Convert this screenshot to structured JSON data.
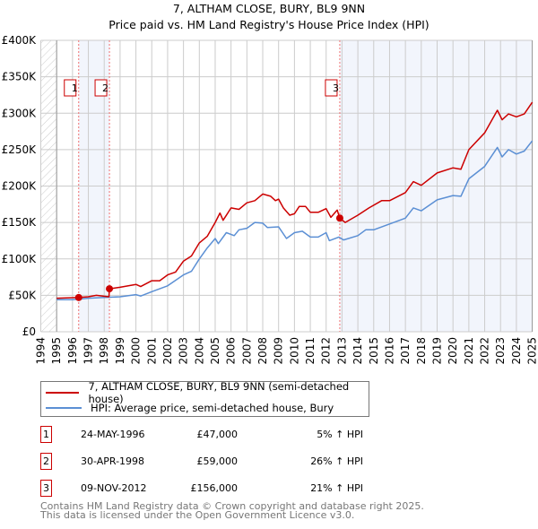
{
  "chart_data": {
    "type": "line",
    "title": "7, ALTHAM CLOSE, BURY, BL9 9NN",
    "subtitle": "Price paid vs. HM Land Registry's House Price Index (HPI)",
    "xlim": [
      1994,
      2025
    ],
    "ylim": [
      0,
      400000
    ],
    "x_ticks": [
      "1994",
      "1995",
      "1996",
      "1997",
      "1998",
      "1999",
      "2000",
      "2001",
      "2002",
      "2003",
      "2004",
      "2005",
      "2006",
      "2007",
      "2008",
      "2009",
      "2010",
      "2011",
      "2012",
      "2013",
      "2014",
      "2015",
      "2016",
      "2017",
      "2018",
      "2019",
      "2020",
      "2021",
      "2022",
      "2023",
      "2024",
      "2025"
    ],
    "y_ticks": [
      {
        "v": 0,
        "label": "£0"
      },
      {
        "v": 50000,
        "label": "£50K"
      },
      {
        "v": 100000,
        "label": "£100K"
      },
      {
        "v": 150000,
        "label": "£150K"
      },
      {
        "v": 200000,
        "label": "£200K"
      },
      {
        "v": 250000,
        "label": "£250K"
      },
      {
        "v": 300000,
        "label": "£300K"
      },
      {
        "v": 350000,
        "label": "£350K"
      },
      {
        "v": 400000,
        "label": "£400K"
      }
    ],
    "grid": true,
    "series": [
      {
        "name": "7, ALTHAM CLOSE, BURY, BL9 9NN (semi-detached house)",
        "color": "#cc0000",
        "x": [
          1995,
          1996.39,
          1997,
          1997.5,
          1998.3,
          1998.33,
          1999,
          2000,
          2000.3,
          2001,
          2001.5,
          2002,
          2002.5,
          2003,
          2003.5,
          2004,
          2004.5,
          2005,
          2005.3,
          2005.5,
          2006,
          2006.5,
          2007,
          2007.5,
          2008,
          2008.5,
          2008.8,
          2009,
          2009.3,
          2009.7,
          2010,
          2010.3,
          2010.7,
          2011,
          2011.5,
          2012,
          2012.3,
          2012.7,
          2012.86,
          2013.2,
          2014,
          2014.7,
          2015.5,
          2016,
          2017,
          2017.5,
          2018,
          2019,
          2020,
          2020.5,
          2021,
          2022,
          2022.8,
          2023.1,
          2023.5,
          2024,
          2024.5,
          2025
        ],
        "y": [
          46000,
          47000,
          48000,
          50000,
          48000,
          59000,
          61000,
          65000,
          62000,
          70000,
          70000,
          78000,
          82000,
          97000,
          104000,
          122000,
          131000,
          150000,
          163000,
          153000,
          170000,
          168000,
          177000,
          180000,
          189000,
          186000,
          180000,
          182000,
          170000,
          160000,
          162000,
          172000,
          172000,
          164000,
          164000,
          169000,
          157000,
          167000,
          156000,
          150000,
          160000,
          170000,
          180000,
          180000,
          191000,
          206000,
          201000,
          218000,
          225000,
          223000,
          250000,
          273000,
          304000,
          291000,
          299000,
          295000,
          299000,
          315000
        ]
      },
      {
        "name": "HPI: Average price, semi-detached house, Bury",
        "color": "#5b8fd4",
        "x": [
          1995,
          1996,
          1997,
          1998,
          1999,
          2000,
          2000.3,
          2001,
          2002,
          2003,
          2003.5,
          2004,
          2004.5,
          2005,
          2005.2,
          2005.7,
          2006.2,
          2006.5,
          2007,
          2007.5,
          2008,
          2008.3,
          2009,
          2009.5,
          2010,
          2010.5,
          2011,
          2011.5,
          2012,
          2012.2,
          2012.8,
          2013.1,
          2014,
          2014.5,
          2015,
          2016,
          2017,
          2017.5,
          2018,
          2019,
          2020,
          2020.5,
          2021,
          2022,
          2022.8,
          2023.1,
          2023.5,
          2024,
          2024.5,
          2025
        ],
        "y": [
          44000,
          44000,
          46000,
          47000,
          48000,
          51000,
          49000,
          55000,
          63000,
          78000,
          83000,
          100000,
          115000,
          128000,
          121000,
          136000,
          132000,
          140000,
          142000,
          150000,
          149000,
          143000,
          144000,
          128000,
          136000,
          138000,
          130000,
          130000,
          136000,
          125000,
          130000,
          126000,
          132000,
          140000,
          140000,
          148000,
          156000,
          170000,
          166000,
          181000,
          187000,
          186000,
          210000,
          227000,
          253000,
          240000,
          250000,
          244000,
          248000,
          262000
        ]
      }
    ],
    "sales": [
      {
        "n": "1",
        "x": 1996.39,
        "y": 47000
      },
      {
        "n": "2",
        "x": 1998.33,
        "y": 59000
      },
      {
        "n": "3",
        "x": 2012.86,
        "y": 156000
      }
    ],
    "legend_position": "below"
  },
  "legend": {
    "property": "7, ALTHAM CLOSE, BURY, BL9 9NN (semi-detached house)",
    "hpi": "HPI: Average price, semi-detached house, Bury"
  },
  "transactions": [
    {
      "n": "1",
      "date": "24-MAY-1996",
      "price": "£47,000",
      "hpi": "5% ↑ HPI"
    },
    {
      "n": "2",
      "date": "30-APR-1998",
      "price": "£59,000",
      "hpi": "26% ↑ HPI"
    },
    {
      "n": "3",
      "date": "09-NOV-2012",
      "price": "£156,000",
      "hpi": "21% ↑ HPI"
    }
  ],
  "footer": {
    "line1": "Contains HM Land Registry data © Crown copyright and database right 2025.",
    "line2": "This data is licensed under the Open Government Licence v3.0."
  }
}
